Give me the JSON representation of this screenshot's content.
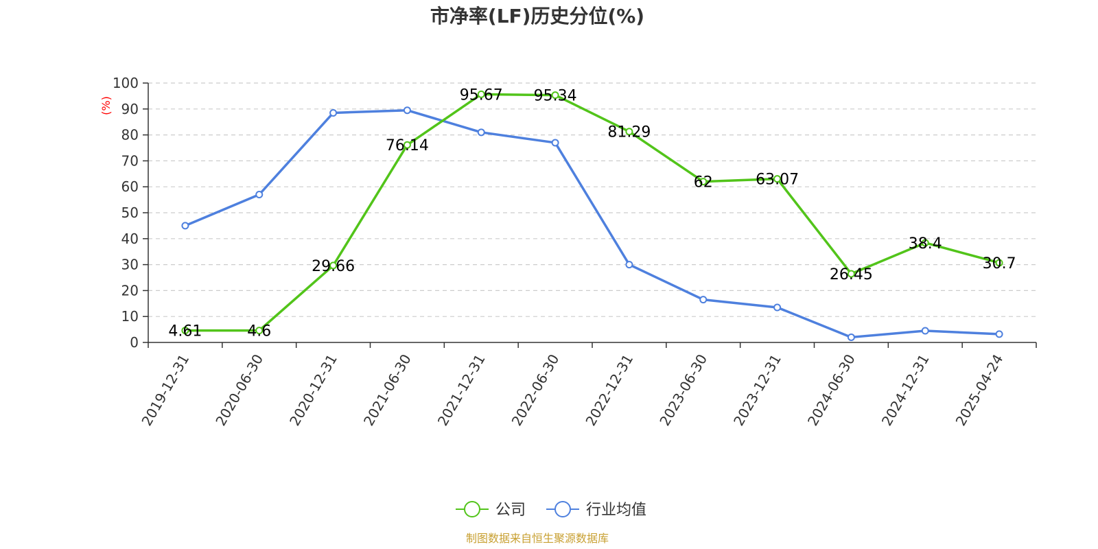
{
  "chart_data": {
    "type": "line",
    "title": "市净率(LF)历史分位(%)",
    "ylabel": "(%)",
    "xlabel": "",
    "ylim": [
      0,
      100
    ],
    "yticks": [
      0,
      10,
      20,
      30,
      40,
      50,
      60,
      70,
      80,
      90,
      100
    ],
    "grid": true,
    "legend_position": "bottom",
    "categories": [
      "2019-12-31",
      "2020-06-30",
      "2020-12-31",
      "2021-06-30",
      "2021-12-31",
      "2022-06-30",
      "2022-12-31",
      "2023-06-30",
      "2023-12-31",
      "2024-06-30",
      "2024-12-31",
      "2025-04-24"
    ],
    "series": [
      {
        "name": "公司",
        "color": "#52c41a",
        "values": [
          4.61,
          4.6,
          29.66,
          76.14,
          95.67,
          95.34,
          81.29,
          62,
          63.07,
          26.45,
          38.4,
          30.7
        ],
        "labels": [
          "4.61",
          "4.6",
          "29.66",
          "76.14",
          "95.67",
          "95.34",
          "81.29",
          "62",
          "63.07",
          "26.45",
          "38.4",
          "30.7"
        ]
      },
      {
        "name": "行业均值",
        "color": "#4e80de",
        "values": [
          45,
          57,
          88.5,
          89.5,
          81,
          77,
          30,
          16.5,
          13.5,
          2,
          4.5,
          3.2
        ]
      }
    ]
  },
  "source_text": "制图数据来自恒生聚源数据库"
}
